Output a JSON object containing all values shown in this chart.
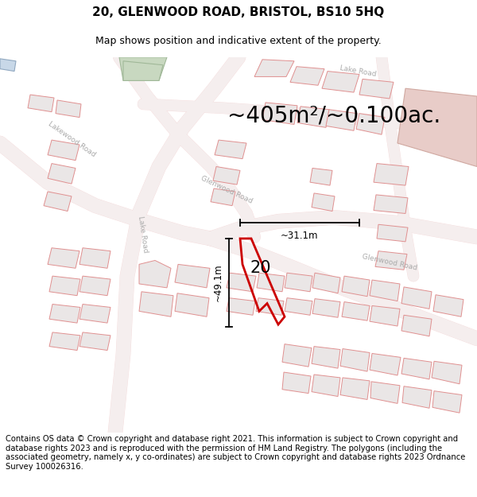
{
  "title": "20, GLENWOOD ROAD, BRISTOL, BS10 5HQ",
  "subtitle": "Map shows position and indicative extent of the property.",
  "area_text": "~405m²/~0.100ac.",
  "dim_h": "~49.1m",
  "dim_w": "~31.1m",
  "house_number": "20",
  "footer": "Contains OS data © Crown copyright and database right 2021. This information is subject to Crown copyright and database rights 2023 and is reproduced with the permission of HM Land Registry. The polygons (including the associated geometry, namely x, y co-ordinates) are subject to Crown copyright and database rights 2023 Ordnance Survey 100026316.",
  "map_bg": "#f9f6f6",
  "road_line_color": "#e8a0a0",
  "road_fill_color": "#f5ecec",
  "building_fill": "#e8e4e4",
  "building_outline": "#d0c8c8",
  "green_fill": "#c8d8c0",
  "pink_fill": "#e8ccc8",
  "blue_fill": "#c8d8e8",
  "prop_color": "#cc0000",
  "title_fontsize": 11,
  "subtitle_fontsize": 9,
  "area_fontsize": 20,
  "footer_fontsize": 7.2,
  "road_label_color": "#aaaaaa",
  "road_label_size": 6.5
}
